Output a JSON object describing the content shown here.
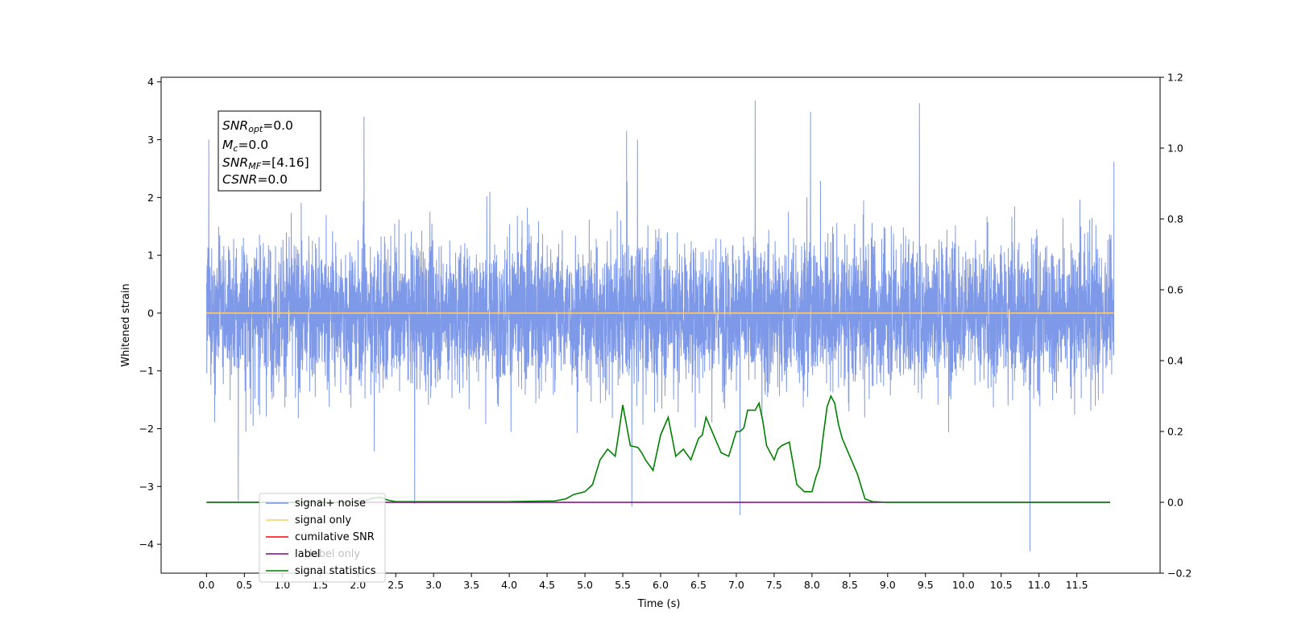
{
  "chart_data": {
    "type": "line",
    "xlabel": "Time (s)",
    "ylabel": "Whitened strain",
    "xlim": [
      -0.6,
      12.6
    ],
    "ylim_left": [
      -4.5,
      4.08
    ],
    "ylim_right": [
      -0.2,
      1.2
    ],
    "x_ticks": [
      "0.0",
      "0.5",
      "1.0",
      "1.5",
      "2.0",
      "2.5",
      "3.0",
      "3.5",
      "4.0",
      "4.5",
      "5.0",
      "5.5",
      "6.0",
      "6.5",
      "7.0",
      "7.5",
      "8.0",
      "8.5",
      "9.0",
      "9.5",
      "10.0",
      "10.5",
      "11.0",
      "11.5"
    ],
    "y_ticks_left": [
      "4",
      "3",
      "2",
      "1",
      "0",
      "−1",
      "−2",
      "−3",
      "−4"
    ],
    "y_ticks_right": [
      "1.2",
      "1.0",
      "0.8",
      "0.6",
      "0.4",
      "0.2",
      "0.0",
      "−0.2"
    ],
    "annotation": {
      "snr_opt": {
        "base": "SNR",
        "sub": "opt",
        "value": "=0.0"
      },
      "mc": {
        "base": "M",
        "sub": "c",
        "value": "=0.0"
      },
      "snr_mf": {
        "base": "SNR",
        "sub": "MF",
        "value": "=[4.16]"
      },
      "csnr": {
        "base": "CSNR",
        "value": "=0.0"
      }
    },
    "legend": {
      "placement": "lower-left",
      "entries": [
        {
          "label": "signal+ noise",
          "color": "#7893e8"
        },
        {
          "label": "signal only",
          "color": "#ffc966"
        },
        {
          "label": "cumilative SNR",
          "color": "#ff0000"
        },
        {
          "label": "label",
          "color": "#800080"
        },
        {
          "label": "signal statistics",
          "color": "#008000"
        }
      ]
    },
    "hidden_label": "label only",
    "series": [
      {
        "name": "signal+ noise",
        "axis": "left",
        "color": "#7893e8",
        "x_range": [
          0.0,
          11.99
        ],
        "envelope_typical": [
          -1.8,
          1.8
        ],
        "extremes": [
          {
            "x": 0.03,
            "y": 3.0
          },
          {
            "x": 0.42,
            "y": -3.25
          },
          {
            "x": 2.08,
            "y": 3.4
          },
          {
            "x": 2.75,
            "y": -3.3
          },
          {
            "x": 5.55,
            "y": 3.15
          },
          {
            "x": 5.62,
            "y": -3.35
          },
          {
            "x": 7.05,
            "y": -3.5
          },
          {
            "x": 7.25,
            "y": 3.68
          },
          {
            "x": 7.98,
            "y": 3.48
          },
          {
            "x": 9.42,
            "y": 3.63
          },
          {
            "x": 10.88,
            "y": -4.12
          },
          {
            "x": 11.99,
            "y": 2.62
          }
        ]
      },
      {
        "name": "signal only",
        "axis": "left",
        "color": "#ffc966",
        "x": [
          0.0,
          11.99
        ],
        "y": [
          0.0,
          0.0
        ]
      },
      {
        "name": "label",
        "axis": "right",
        "color": "#800080",
        "x": [
          0.0,
          11.94
        ],
        "y": [
          0.0,
          0.0
        ]
      },
      {
        "name": "signal statistics",
        "axis": "right",
        "color": "#008000",
        "x": [
          0.0,
          1.0,
          2.0,
          2.1,
          2.2,
          2.3,
          2.4,
          2.5,
          3.0,
          4.0,
          4.6,
          4.75,
          4.85,
          5.0,
          5.1,
          5.2,
          5.3,
          5.4,
          5.45,
          5.5,
          5.6,
          5.7,
          5.75,
          5.8,
          5.9,
          6.0,
          6.1,
          6.2,
          6.3,
          6.4,
          6.5,
          6.55,
          6.6,
          6.7,
          6.8,
          6.9,
          7.0,
          7.05,
          7.1,
          7.15,
          7.2,
          7.25,
          7.3,
          7.35,
          7.4,
          7.5,
          7.55,
          7.6,
          7.7,
          7.8,
          7.9,
          8.0,
          8.05,
          8.1,
          8.15,
          8.2,
          8.25,
          8.3,
          8.35,
          8.4,
          8.5,
          8.6,
          8.7,
          8.8,
          9.0,
          11.94
        ],
        "y": [
          0.0,
          0.0,
          0.0,
          0.005,
          0.012,
          0.014,
          0.006,
          0.002,
          0.002,
          0.002,
          0.004,
          0.01,
          0.022,
          0.03,
          0.05,
          0.12,
          0.15,
          0.13,
          0.2,
          0.275,
          0.16,
          0.155,
          0.14,
          0.12,
          0.09,
          0.19,
          0.24,
          0.13,
          0.15,
          0.12,
          0.18,
          0.19,
          0.24,
          0.19,
          0.14,
          0.13,
          0.2,
          0.2,
          0.21,
          0.26,
          0.26,
          0.26,
          0.28,
          0.23,
          0.16,
          0.12,
          0.15,
          0.16,
          0.17,
          0.05,
          0.03,
          0.03,
          0.07,
          0.1,
          0.19,
          0.27,
          0.3,
          0.28,
          0.22,
          0.18,
          0.13,
          0.08,
          0.01,
          0.002,
          0.0,
          0.0
        ]
      }
    ]
  }
}
